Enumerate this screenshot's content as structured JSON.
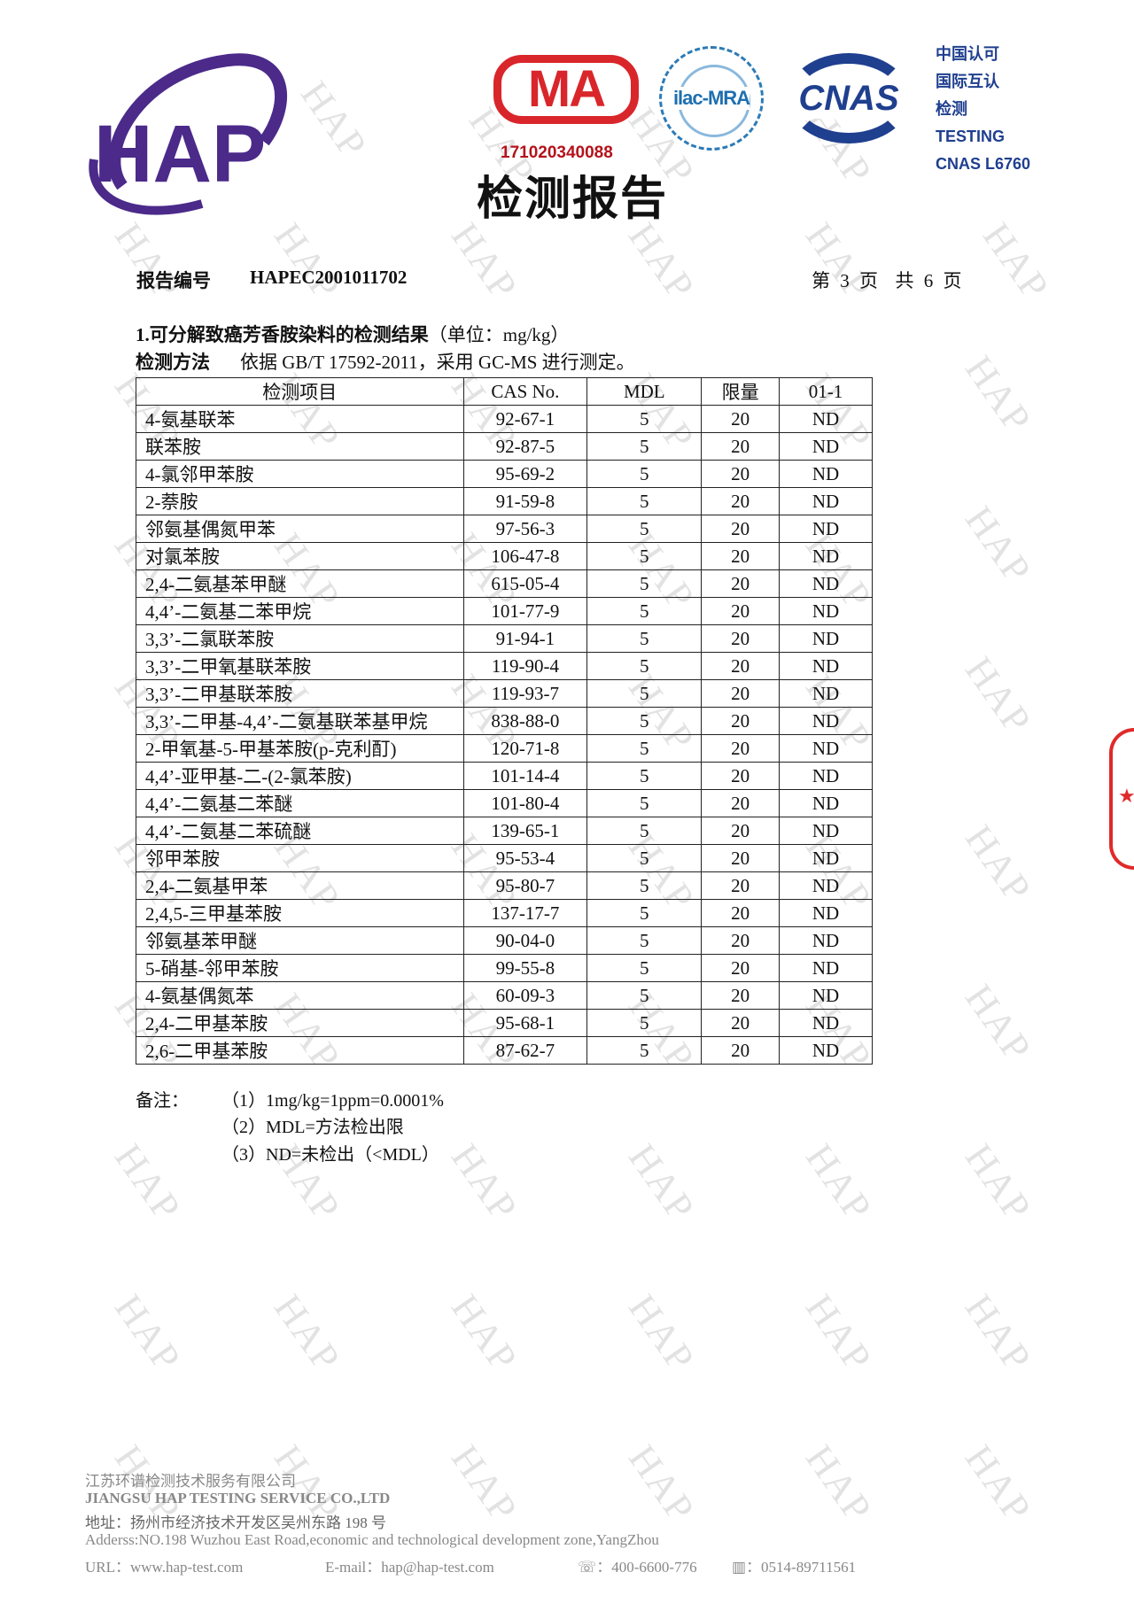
{
  "header": {
    "company_logo": "HAP",
    "cma_logo": "MA",
    "cma_number": "171020340088",
    "ilac_logo": "ilac-MRA",
    "cnas_logo": "CNAS",
    "accreditation_lines": [
      "中国认可",
      "国际互认",
      "检测",
      "TESTING",
      "CNAS L6760"
    ],
    "title": "检测报告",
    "brand_color": "#4b2a8a",
    "cma_color": "#d9262b",
    "cnas_color": "#1f3f8f"
  },
  "report": {
    "number_label": "报告编号",
    "number": "HAPEC2001011702",
    "page_info": "第 3 页  共 6 页"
  },
  "section": {
    "title": "1.可分解致癌芳香胺染料的检测结果",
    "unit": "（单位：mg/kg）",
    "method_label": "检测方法",
    "method_text": "依据 GB/T 17592-2011，采用 GC-MS 进行测定。"
  },
  "table": {
    "headers": [
      "检测项目",
      "CAS No.",
      "MDL",
      "限量",
      "01-1"
    ],
    "rows": [
      [
        "4-氨基联苯",
        "92-67-1",
        "5",
        "20",
        "ND"
      ],
      [
        "联苯胺",
        "92-87-5",
        "5",
        "20",
        "ND"
      ],
      [
        "4-氯邻甲苯胺",
        "95-69-2",
        "5",
        "20",
        "ND"
      ],
      [
        "2-萘胺",
        "91-59-8",
        "5",
        "20",
        "ND"
      ],
      [
        "邻氨基偶氮甲苯",
        "97-56-3",
        "5",
        "20",
        "ND"
      ],
      [
        "对氯苯胺",
        "106-47-8",
        "5",
        "20",
        "ND"
      ],
      [
        "2,4-二氨基苯甲醚",
        "615-05-4",
        "5",
        "20",
        "ND"
      ],
      [
        "4,4’-二氨基二苯甲烷",
        "101-77-9",
        "5",
        "20",
        "ND"
      ],
      [
        "3,3’-二氯联苯胺",
        "91-94-1",
        "5",
        "20",
        "ND"
      ],
      [
        "3,3’-二甲氧基联苯胺",
        "119-90-4",
        "5",
        "20",
        "ND"
      ],
      [
        "3,3’-二甲基联苯胺",
        "119-93-7",
        "5",
        "20",
        "ND"
      ],
      [
        "3,3’-二甲基-4,4’-二氨基联苯基甲烷",
        "838-88-0",
        "5",
        "20",
        "ND"
      ],
      [
        "2-甲氧基-5-甲基苯胺(p-克利酊)",
        "120-71-8",
        "5",
        "20",
        "ND"
      ],
      [
        "4,4’-亚甲基-二-(2-氯苯胺)",
        "101-14-4",
        "5",
        "20",
        "ND"
      ],
      [
        "4,4’-二氨基二苯醚",
        "101-80-4",
        "5",
        "20",
        "ND"
      ],
      [
        "4,4’-二氨基二苯硫醚",
        "139-65-1",
        "5",
        "20",
        "ND"
      ],
      [
        "邻甲苯胺",
        "95-53-4",
        "5",
        "20",
        "ND"
      ],
      [
        "2,4-二氨基甲苯",
        "95-80-7",
        "5",
        "20",
        "ND"
      ],
      [
        "2,4,5-三甲基苯胺",
        "137-17-7",
        "5",
        "20",
        "ND"
      ],
      [
        "邻氨基苯甲醚",
        "90-04-0",
        "5",
        "20",
        "ND"
      ],
      [
        "5-硝基-邻甲苯胺",
        "99-55-8",
        "5",
        "20",
        "ND"
      ],
      [
        "4-氨基偶氮苯",
        "60-09-3",
        "5",
        "20",
        "ND"
      ],
      [
        "2,4-二甲基苯胺",
        "95-68-1",
        "5",
        "20",
        "ND"
      ],
      [
        "2,6-二甲基苯胺",
        "87-62-7",
        "5",
        "20",
        "ND"
      ]
    ]
  },
  "notes": {
    "label": "备注：",
    "items": [
      "（1）1mg/kg=1ppm=0.0001%",
      "（2）MDL=方法检出限",
      "（3）ND=未检出（<MDL）"
    ]
  },
  "footer": {
    "company_cn": "江苏环谱检测技术服务有限公司",
    "company_en": "JIANGSU HAP TESTING SERVICE CO.,LTD",
    "address_cn": "地址：扬州市经济技术开发区吴州东路 198 号",
    "address_en": "Adderss:NO.198 Wuzhou East Road,economic and technological development zone,YangZhou",
    "url": "URL：www.hap-test.com",
    "email": "E-mail：hap@hap-test.com",
    "phone_icon": "phone-icon",
    "phone": "：400-6600-776",
    "fax_icon": "fax-icon",
    "fax": "：0514-89711561"
  },
  "watermark": "HAP"
}
